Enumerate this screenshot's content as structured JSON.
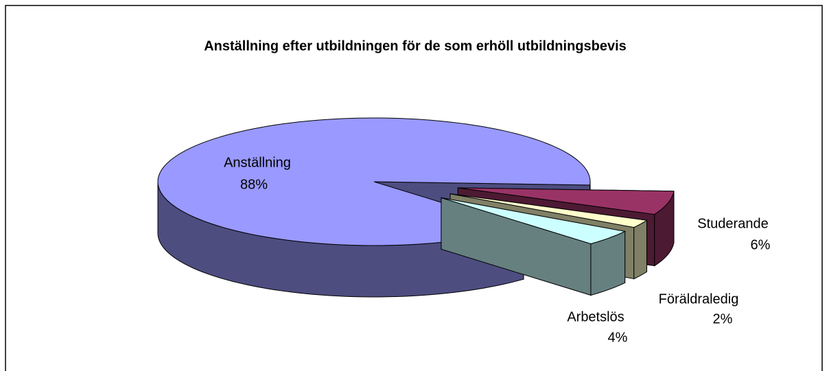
{
  "chart_data": {
    "type": "pie",
    "title": "Anställning efter utbildningen för de som erhöll utbildningsbevis",
    "categories": [
      "Studerande",
      "Föräldraledig",
      "Arbetslös",
      "Anställning"
    ],
    "values": [
      6,
      2,
      4,
      88
    ],
    "value_labels": [
      "6%",
      "2%",
      "4%",
      "88%"
    ],
    "colors": [
      "#993366",
      "#ffffcc",
      "#ccffff",
      "#9999ff"
    ]
  }
}
